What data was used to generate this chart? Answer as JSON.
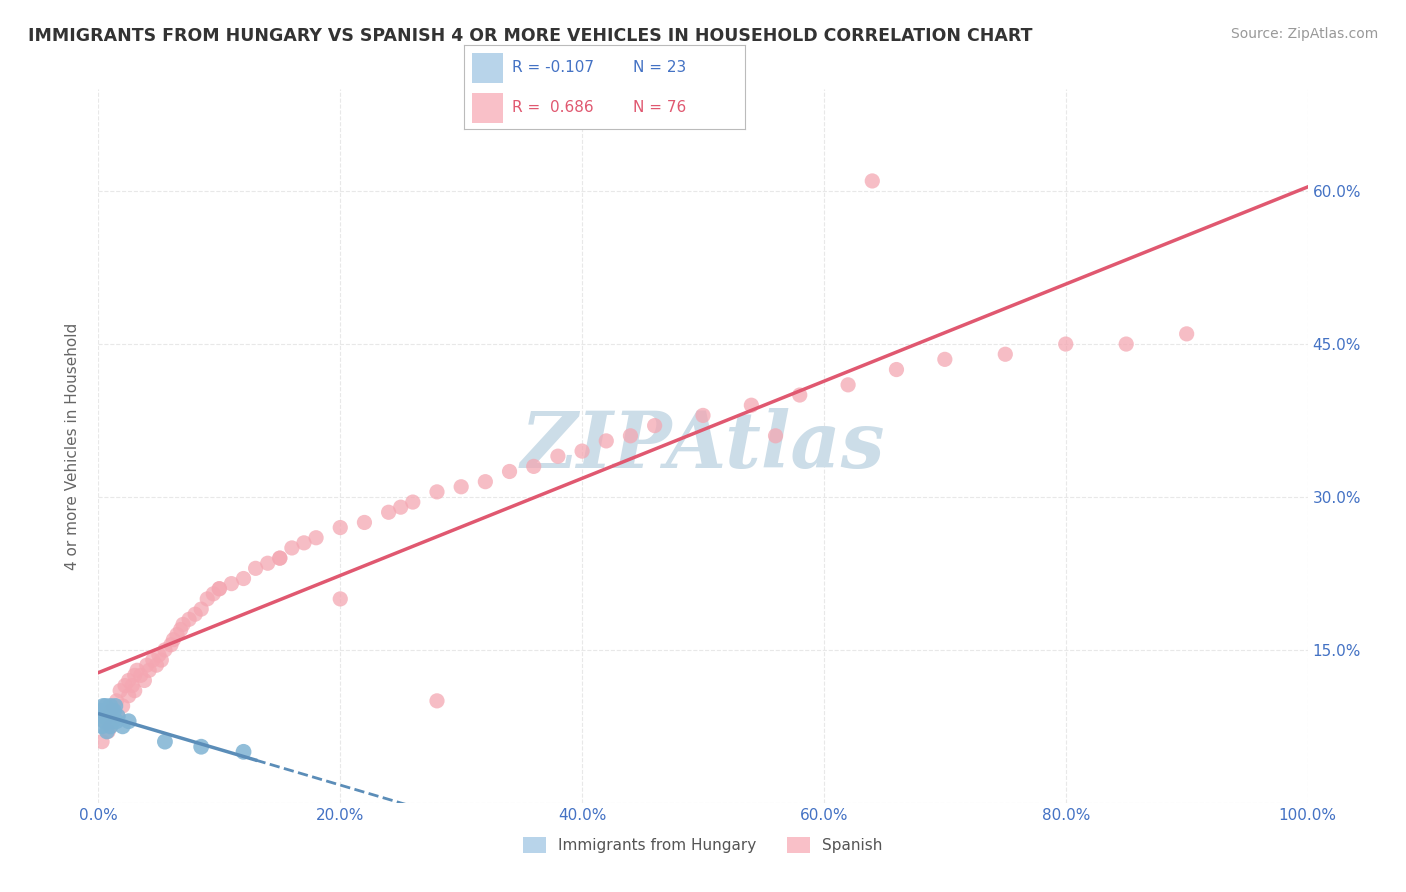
{
  "title": "IMMIGRANTS FROM HUNGARY VS SPANISH 4 OR MORE VEHICLES IN HOUSEHOLD CORRELATION CHART",
  "source_text": "Source: ZipAtlas.com",
  "ylabel": "4 or more Vehicles in Household",
  "legend_label1": "Immigrants from Hungary",
  "legend_label2": "Spanish",
  "R1": -0.107,
  "N1": 23,
  "R2": 0.686,
  "N2": 76,
  "color1": "#7fb3d3",
  "color2": "#f4a7b2",
  "trendline1_color": "#5b8db8",
  "trendline2_color": "#e05870",
  "watermark": "ZIPAtlas",
  "xlim": [
    0.0,
    1.0
  ],
  "ylim": [
    0.0,
    0.7
  ],
  "xticks": [
    0.0,
    0.2,
    0.4,
    0.6,
    0.8,
    1.0
  ],
  "yticks": [
    0.0,
    0.15,
    0.3,
    0.45,
    0.6
  ],
  "xtick_labels": [
    "0.0%",
    "20.0%",
    "40.0%",
    "60.0%",
    "80.0%",
    "100.0%"
  ],
  "ytick_labels_right": [
    "",
    "15.0%",
    "30.0%",
    "45.0%",
    "60.0%"
  ],
  "scatter1_x": [
    0.002,
    0.003,
    0.004,
    0.005,
    0.005,
    0.006,
    0.007,
    0.008,
    0.008,
    0.009,
    0.01,
    0.01,
    0.011,
    0.012,
    0.013,
    0.014,
    0.015,
    0.016,
    0.02,
    0.025,
    0.055,
    0.085,
    0.12
  ],
  "scatter1_y": [
    0.09,
    0.075,
    0.095,
    0.08,
    0.085,
    0.095,
    0.07,
    0.085,
    0.09,
    0.08,
    0.095,
    0.075,
    0.085,
    0.08,
    0.09,
    0.095,
    0.08,
    0.085,
    0.075,
    0.08,
    0.06,
    0.055,
    0.05
  ],
  "scatter2_x": [
    0.003,
    0.005,
    0.008,
    0.01,
    0.01,
    0.012,
    0.015,
    0.016,
    0.018,
    0.02,
    0.022,
    0.025,
    0.025,
    0.028,
    0.03,
    0.03,
    0.032,
    0.035,
    0.038,
    0.04,
    0.042,
    0.045,
    0.048,
    0.05,
    0.052,
    0.055,
    0.06,
    0.062,
    0.065,
    0.068,
    0.07,
    0.075,
    0.08,
    0.085,
    0.09,
    0.095,
    0.1,
    0.11,
    0.12,
    0.13,
    0.14,
    0.15,
    0.16,
    0.17,
    0.18,
    0.2,
    0.22,
    0.24,
    0.25,
    0.26,
    0.28,
    0.3,
    0.32,
    0.34,
    0.36,
    0.38,
    0.4,
    0.42,
    0.44,
    0.46,
    0.5,
    0.54,
    0.58,
    0.62,
    0.66,
    0.7,
    0.75,
    0.8,
    0.85,
    0.9,
    0.1,
    0.15,
    0.2,
    0.56,
    0.64,
    0.28
  ],
  "scatter2_y": [
    0.06,
    0.08,
    0.07,
    0.09,
    0.075,
    0.095,
    0.1,
    0.085,
    0.11,
    0.095,
    0.115,
    0.12,
    0.105,
    0.115,
    0.125,
    0.11,
    0.13,
    0.125,
    0.12,
    0.135,
    0.13,
    0.14,
    0.135,
    0.145,
    0.14,
    0.15,
    0.155,
    0.16,
    0.165,
    0.17,
    0.175,
    0.18,
    0.185,
    0.19,
    0.2,
    0.205,
    0.21,
    0.215,
    0.22,
    0.23,
    0.235,
    0.24,
    0.25,
    0.255,
    0.26,
    0.27,
    0.275,
    0.285,
    0.29,
    0.295,
    0.305,
    0.31,
    0.315,
    0.325,
    0.33,
    0.34,
    0.345,
    0.355,
    0.36,
    0.37,
    0.38,
    0.39,
    0.4,
    0.41,
    0.425,
    0.435,
    0.44,
    0.45,
    0.45,
    0.46,
    0.21,
    0.24,
    0.2,
    0.36,
    0.61,
    0.1
  ],
  "title_color": "#333333",
  "axis_label_color": "#666666",
  "tick_label_color": "#4472c4",
  "grid_color": "#e8e8e8",
  "grid_style": "--",
  "watermark_color": "#ccdde8",
  "legend_box_color1": "#b8d4ea",
  "legend_box_color2": "#f9c0c8",
  "legend_R_color1": "#4472c4",
  "legend_R_color2": "#e05870",
  "source_color": "#999999",
  "trendline1_start_x": 0.001,
  "trendline1_end_x": 0.9,
  "trendline2_start_x": 0.0,
  "trendline2_end_x": 1.0
}
